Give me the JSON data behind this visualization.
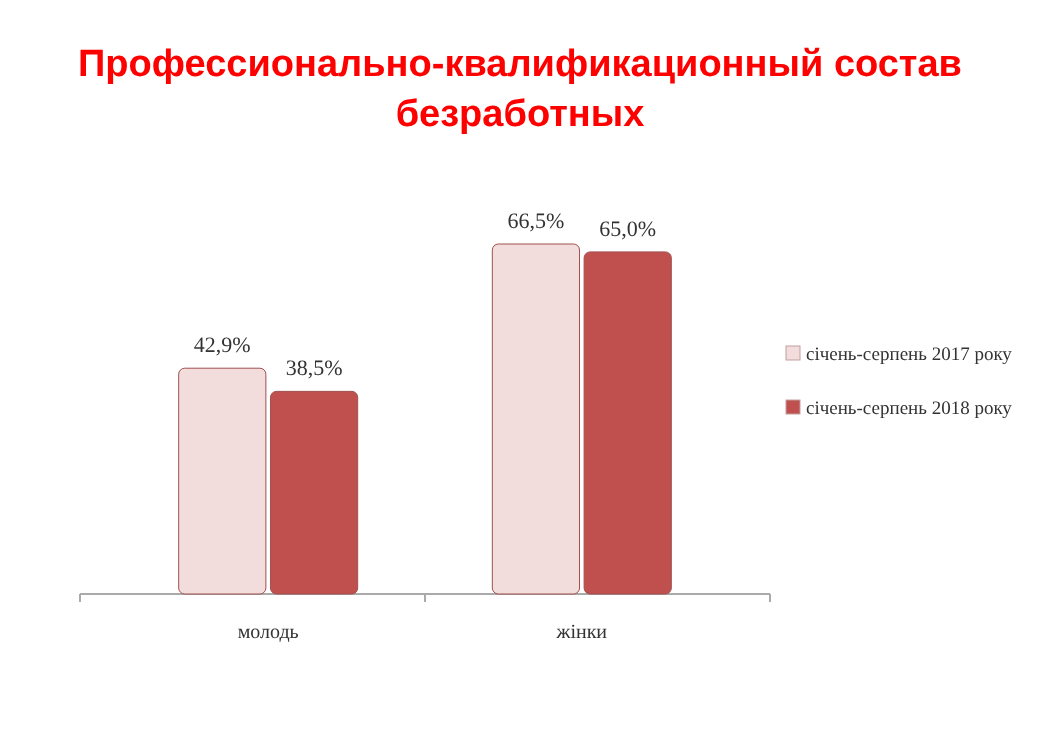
{
  "chart_data": {
    "type": "bar",
    "title": "Профессионально-квалификационный состав безработных",
    "categories": [
      "молодь",
      "жінки"
    ],
    "series": [
      {
        "name": "січень-серпень 2017 року",
        "color": "#f2dcdc",
        "values": [
          42.9,
          66.5
        ],
        "value_labels": [
          "42,9%",
          "66,5%"
        ]
      },
      {
        "name": "січень-серпень 2018 року",
        "color": "#c0504d",
        "values": [
          38.5,
          65.0
        ],
        "value_labels": [
          "38,5%",
          "65,0%"
        ]
      }
    ],
    "tick_labels": "x",
    "legend": "right",
    "grid": false
  }
}
